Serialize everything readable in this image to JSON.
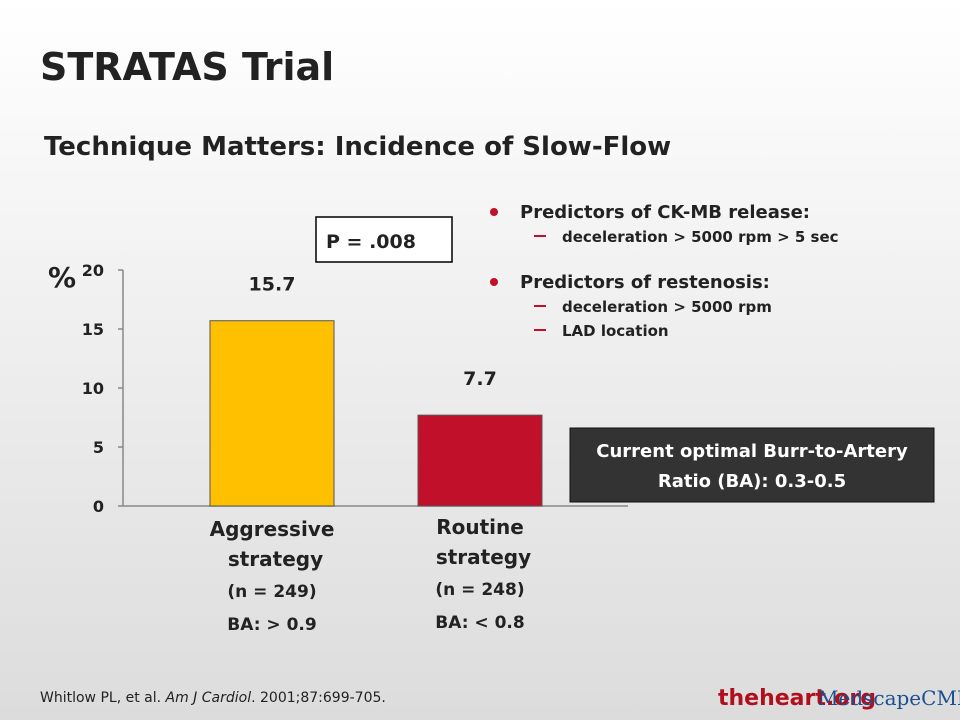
{
  "slide_title": "STRATAS Trial",
  "subtitle": "Technique Matters: Incidence of Slow-Flow",
  "chart_data": {
    "type": "bar",
    "ylabel": "%",
    "categories": [
      "Aggressive strategy",
      "Routine strategy"
    ],
    "category_notes": [
      [
        "(n = 249)",
        "BA: > 0.9"
      ],
      [
        "(n = 248)",
        "BA: < 0.8"
      ]
    ],
    "values": [
      15.7,
      7.7
    ],
    "colors": [
      "#ffc000",
      "#c0102a"
    ],
    "ylim": [
      0,
      20
    ],
    "yticks": [
      0,
      5,
      10,
      15,
      20
    ],
    "annotation": "P = .008"
  },
  "bullets": [
    {
      "text": "Predictors of CK-MB release:",
      "subs": [
        "deceleration > 5000 rpm > 5 sec"
      ]
    },
    {
      "text": "Predictors of restenosis:",
      "subs": [
        "deceleration > 5000 rpm",
        "LAD location"
      ]
    }
  ],
  "callout": [
    "Current optimal Burr-to-Artery",
    "Ratio (BA): 0.3-0.5"
  ],
  "citation": [
    "Whitlow PL, et al. ",
    "Am J Cardiol",
    ". 2001;87:699-705."
  ],
  "logos": [
    "theheart.org",
    "MedscapeCME"
  ]
}
